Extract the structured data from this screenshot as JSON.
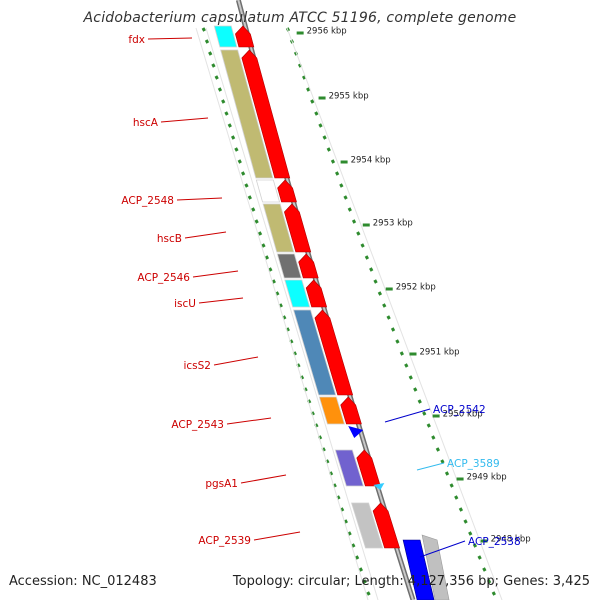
{
  "title": "Acidobacterium capsulatum ATCC 51196, complete genome",
  "footer": {
    "accession": "Accession: NC_012483",
    "summary": "Topology: circular; Length: 4,127,356 bp; Genes: 3,425"
  },
  "scale_marks": [
    {
      "label": "2956 kbp"
    },
    {
      "label": "2955 kbp"
    },
    {
      "label": "2954 kbp"
    },
    {
      "label": "2953 kbp"
    },
    {
      "label": "2952 kbp"
    },
    {
      "label": "2951 kbp"
    },
    {
      "label": "2950 kbp"
    },
    {
      "label": "2949 kbp"
    },
    {
      "label": "2948 kbp"
    }
  ],
  "genes": [
    {
      "label": "fdx",
      "strand": "reverse",
      "color": "#00ffff"
    },
    {
      "label": "hscA",
      "strand": "reverse",
      "color": "#bdb76b"
    },
    {
      "label": "ACP_2548",
      "strand": "reverse",
      "color": "#ffffff"
    },
    {
      "label": "hscB",
      "strand": "reverse",
      "color": "#bdb76b"
    },
    {
      "label": "ACP_2546",
      "strand": "reverse",
      "color": "#696969"
    },
    {
      "label": "iscU",
      "strand": "reverse",
      "color": "#00ffff"
    },
    {
      "label": "icsS2",
      "strand": "reverse",
      "color": "#4682b4"
    },
    {
      "label": "ACP_2543",
      "strand": "reverse",
      "color": "#ff8c00"
    },
    {
      "label": "ACP_2542",
      "strand": "forward",
      "color": "#0000ff"
    },
    {
      "label": "pgsA1",
      "strand": "reverse",
      "color": "#6a5acd"
    },
    {
      "label": "ACP_3589",
      "strand": "forward",
      "color": "#33ccff"
    },
    {
      "label": "ACP_2539",
      "strand": "reverse",
      "color": "#c0c0c0"
    },
    {
      "label": "ACP_2538",
      "strand": "forward",
      "color": "#0000ff"
    }
  ],
  "colors": {
    "reverse_label": "#cc0000",
    "forward_label": "#0000cc",
    "forward_label_alt": "#33bbee",
    "cds_arrow": "#ff0000",
    "backbone": "#888888",
    "tick": "#2e8b2e"
  }
}
